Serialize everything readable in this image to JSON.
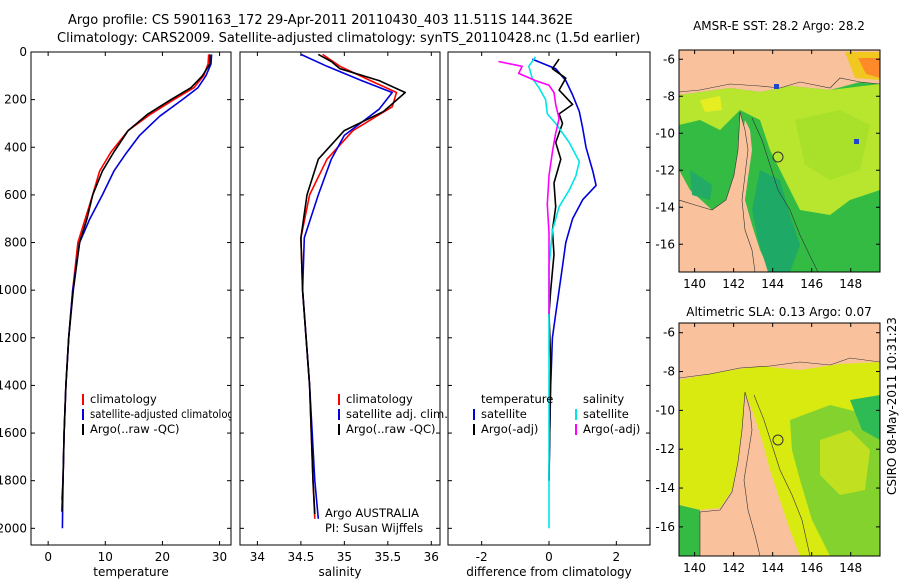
{
  "header": {
    "line1": "Argo profile: CS 5901163_172 29-Apr-2011 20110430_403 11.511S 144.362E",
    "line2": "Climatology: CARS2009. Satellite-adjusted climatology: synTS_20110428.nc (1.5d earlier)"
  },
  "side_label": "CSIRO 08-May-2011 10:31:23",
  "colors": {
    "red": "#ff0000",
    "blue": "#0000dd",
    "black": "#000000",
    "cyan": "#00e6e6",
    "magenta": "#ff00ff",
    "land": "#f9c29c"
  },
  "chart_data": [
    {
      "type": "line",
      "id": "temperature",
      "xlabel": "temperature",
      "xticks": [
        0,
        10,
        20,
        30
      ],
      "xlim": [
        -3,
        32
      ],
      "yticks": [
        0,
        200,
        400,
        600,
        800,
        1000,
        1200,
        1400,
        1600,
        1800,
        2000
      ],
      "ylim": [
        2070,
        0
      ],
      "series": [
        {
          "name": "climatology",
          "color": "#ff0000",
          "points": [
            [
              28.1,
              10
            ],
            [
              28.0,
              50
            ],
            [
              27.2,
              100
            ],
            [
              25.5,
              150
            ],
            [
              22.0,
              200
            ],
            [
              18.0,
              260
            ],
            [
              14.0,
              330
            ],
            [
              11.0,
              420
            ],
            [
              9.0,
              500
            ],
            [
              7.8,
              600
            ],
            [
              6.5,
              700
            ],
            [
              5.2,
              800
            ],
            [
              4.3,
              1000
            ],
            [
              3.6,
              1200
            ],
            [
              3.1,
              1400
            ],
            [
              2.8,
              1600
            ],
            [
              2.6,
              1800
            ],
            [
              2.4,
              1880
            ]
          ]
        },
        {
          "name": "satellite-adjusted climatology",
          "color": "#0000dd",
          "points": [
            [
              28.6,
              10
            ],
            [
              28.5,
              50
            ],
            [
              27.6,
              100
            ],
            [
              26.2,
              150
            ],
            [
              23.5,
              200
            ],
            [
              19.5,
              270
            ],
            [
              16.0,
              350
            ],
            [
              13.5,
              430
            ],
            [
              11.5,
              500
            ],
            [
              9.5,
              600
            ],
            [
              7.3,
              700
            ],
            [
              5.5,
              800
            ],
            [
              4.3,
              1000
            ],
            [
              3.6,
              1200
            ],
            [
              3.1,
              1400
            ],
            [
              2.8,
              1600
            ],
            [
              2.6,
              1800
            ],
            [
              2.5,
              2000
            ]
          ]
        },
        {
          "name": "Argo(..raw -QC)",
          "color": "#000000",
          "points": [
            [
              28.3,
              10
            ],
            [
              28.3,
              50
            ],
            [
              27.0,
              100
            ],
            [
              25.0,
              150
            ],
            [
              21.5,
              200
            ],
            [
              17.5,
              260
            ],
            [
              14.0,
              330
            ],
            [
              11.5,
              420
            ],
            [
              9.5,
              500
            ],
            [
              7.8,
              600
            ],
            [
              6.8,
              700
            ],
            [
              5.5,
              800
            ],
            [
              4.4,
              1000
            ],
            [
              3.6,
              1200
            ],
            [
              3.1,
              1400
            ],
            [
              2.8,
              1600
            ],
            [
              2.6,
              1800
            ],
            [
              2.4,
              1930
            ]
          ]
        }
      ],
      "legend": [
        "climatology",
        "satellite-adjusted climatology",
        "Argo(..raw -QC)"
      ]
    },
    {
      "type": "line",
      "id": "salinity",
      "xlabel": "salinity",
      "xticks": [
        34,
        34.5,
        35,
        35.5,
        36
      ],
      "xticklabels": [
        "34",
        "34.5",
        "35",
        "35.5",
        "36"
      ],
      "xlim": [
        33.8,
        36.1
      ],
      "yticks": [
        0,
        200,
        400,
        600,
        800,
        1000,
        1200,
        1400,
        1600,
        1800,
        2000
      ],
      "ylim": [
        2070,
        0
      ],
      "series": [
        {
          "name": "climatology",
          "color": "#ff0000",
          "points": [
            [
              34.75,
              10
            ],
            [
              34.95,
              60
            ],
            [
              35.3,
              120
            ],
            [
              35.6,
              170
            ],
            [
              35.55,
              230
            ],
            [
              35.1,
              330
            ],
            [
              34.8,
              450
            ],
            [
              34.6,
              600
            ],
            [
              34.5,
              780
            ],
            [
              34.52,
              1000
            ],
            [
              34.56,
              1200
            ],
            [
              34.6,
              1400
            ],
            [
              34.62,
              1600
            ],
            [
              34.64,
              1800
            ],
            [
              34.66,
              1960
            ]
          ]
        },
        {
          "name": "satellite adj. clim.",
          "color": "#0000dd",
          "points": [
            [
              34.5,
              10
            ],
            [
              34.8,
              60
            ],
            [
              35.2,
              120
            ],
            [
              35.55,
              170
            ],
            [
              35.4,
              240
            ],
            [
              35.0,
              350
            ],
            [
              34.85,
              450
            ],
            [
              34.7,
              600
            ],
            [
              34.54,
              780
            ],
            [
              34.52,
              1000
            ],
            [
              34.56,
              1200
            ],
            [
              34.6,
              1400
            ],
            [
              34.63,
              1600
            ],
            [
              34.66,
              1800
            ],
            [
              34.7,
              1960
            ]
          ]
        },
        {
          "name": "Argo(..raw -QC)",
          "color": "#000000",
          "points": [
            [
              34.7,
              10
            ],
            [
              34.85,
              40
            ],
            [
              34.95,
              70
            ],
            [
              35.4,
              120
            ],
            [
              35.7,
              170
            ],
            [
              35.45,
              250
            ],
            [
              35.0,
              330
            ],
            [
              34.7,
              450
            ],
            [
              34.57,
              600
            ],
            [
              34.5,
              780
            ],
            [
              34.52,
              1000
            ],
            [
              34.56,
              1200
            ],
            [
              34.6,
              1400
            ],
            [
              34.62,
              1600
            ],
            [
              34.64,
              1800
            ],
            [
              34.66,
              1940
            ]
          ]
        }
      ],
      "legend": [
        "climatology",
        "satellite adj. clim.",
        "Argo(..raw -QC)"
      ],
      "annotation": [
        "Argo AUSTRALIA",
        "PI: Susan Wijffels"
      ]
    },
    {
      "type": "line",
      "id": "difference",
      "xlabel": "difference from climatology",
      "xticks": [
        -2,
        0,
        2
      ],
      "xlim": [
        -3,
        3
      ],
      "yticks": [
        0,
        200,
        400,
        600,
        800,
        1000,
        1200,
        1400,
        1600,
        1800,
        2000
      ],
      "ylim": [
        2070,
        0
      ],
      "series": [
        {
          "name": "temperature satellite",
          "color": "#0000dd",
          "points": [
            [
              -0.5,
              30
            ],
            [
              0.2,
              70
            ],
            [
              0.5,
              120
            ],
            [
              0.7,
              180
            ],
            [
              0.9,
              250
            ],
            [
              1.0,
              320
            ],
            [
              1.1,
              400
            ],
            [
              1.3,
              500
            ],
            [
              1.4,
              560
            ],
            [
              1.0,
              620
            ],
            [
              0.7,
              700
            ],
            [
              0.5,
              800
            ],
            [
              0.4,
              900
            ],
            [
              0.3,
              1000
            ],
            [
              0.2,
              1100
            ],
            [
              0.1,
              1200
            ],
            [
              0.05,
              1400
            ],
            [
              0.02,
              1600
            ],
            [
              0.0,
              1800
            ]
          ]
        },
        {
          "name": "temperature Argo(-adj)",
          "color": "#000000",
          "points": [
            [
              0.3,
              30
            ],
            [
              0.1,
              70
            ],
            [
              0.5,
              110
            ],
            [
              0.3,
              160
            ],
            [
              0.7,
              220
            ],
            [
              0.3,
              260
            ],
            [
              0.4,
              300
            ],
            [
              0.2,
              380
            ],
            [
              0.35,
              450
            ],
            [
              0.15,
              550
            ],
            [
              0.2,
              650
            ],
            [
              0.1,
              750
            ],
            [
              0.15,
              850
            ],
            [
              0.05,
              1000
            ],
            [
              0.0,
              1100
            ],
            [
              0.05,
              1300
            ],
            [
              0.0,
              1800
            ]
          ]
        },
        {
          "name": "salinity satellite",
          "color": "#00e6e6",
          "points": [
            [
              -0.4,
              20
            ],
            [
              -0.6,
              60
            ],
            [
              -0.5,
              110
            ],
            [
              -0.3,
              150
            ],
            [
              -0.1,
              200
            ],
            [
              -0.05,
              260
            ],
            [
              0.2,
              300
            ],
            [
              0.6,
              380
            ],
            [
              0.9,
              460
            ],
            [
              0.8,
              520
            ],
            [
              0.6,
              580
            ],
            [
              0.3,
              650
            ],
            [
              0.1,
              750
            ],
            [
              0.0,
              900
            ],
            [
              0.0,
              1200
            ],
            [
              0.0,
              2000
            ]
          ]
        },
        {
          "name": "salinity Argo(-adj)",
          "color": "#ff00ff",
          "points": [
            [
              -1.5,
              40
            ],
            [
              -0.8,
              60
            ],
            [
              -0.9,
              90
            ],
            [
              -0.4,
              120
            ],
            [
              0.0,
              140
            ],
            [
              0.15,
              170
            ],
            [
              0.2,
              220
            ],
            [
              0.3,
              280
            ],
            [
              0.2,
              340
            ],
            [
              0.1,
              420
            ],
            [
              0.0,
              520
            ],
            [
              -0.05,
              640
            ],
            [
              0.0,
              760
            ],
            [
              0.0,
              900
            ],
            [
              0.0,
              1100
            ]
          ]
        }
      ],
      "legend_left_title": "temperature",
      "legend_right_title": "salinity",
      "legend_left": [
        "satellite",
        "Argo(-adj)"
      ],
      "legend_right": [
        "satellite",
        "Argo(-adj)"
      ]
    },
    {
      "type": "heatmap",
      "id": "sst_map",
      "title": "AMSR-E SST: 28.2 Argo: 28.2",
      "xticks": [
        140,
        142,
        144,
        146,
        148
      ],
      "xlim": [
        139.2,
        149.5
      ],
      "yticks": [
        -6,
        -8,
        -10,
        -12,
        -14,
        -16
      ],
      "ylim": [
        -17.5,
        -5.5
      ],
      "marker": {
        "lon": 144.36,
        "lat": -11.51
      }
    },
    {
      "type": "heatmap",
      "id": "sla_map",
      "title": "Altimetric SLA: 0.13 Argo: 0.07",
      "xticks": [
        140,
        142,
        144,
        146,
        148
      ],
      "xlim": [
        139.2,
        149.5
      ],
      "yticks": [
        -6,
        -8,
        -10,
        -12,
        -14,
        -16
      ],
      "ylim": [
        -17.5,
        -5.5
      ],
      "marker": {
        "lon": 144.36,
        "lat": -11.51
      }
    }
  ]
}
